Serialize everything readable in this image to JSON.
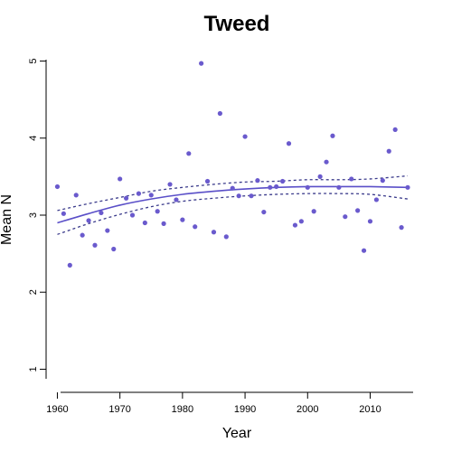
{
  "chart_data": {
    "type": "scatter",
    "title": "Tweed",
    "xlabel": "Year",
    "ylabel": "Mean N",
    "xlim": [
      1958.2,
      2017.3
    ],
    "ylim": [
      0.7,
      5.3
    ],
    "xticks": [
      1960,
      1970,
      1980,
      1990,
      2000,
      2010
    ],
    "yticks": [
      1,
      2,
      3,
      4,
      5
    ],
    "grid": false,
    "legend": "none",
    "series": [
      {
        "kind": "points",
        "color": "#6a5acd",
        "points": [
          [
            1960,
            3.37
          ],
          [
            1961,
            3.02
          ],
          [
            1962,
            2.35
          ],
          [
            1963,
            3.26
          ],
          [
            1964,
            2.74
          ],
          [
            1965,
            2.93
          ],
          [
            1966,
            2.61
          ],
          [
            1967,
            3.03
          ],
          [
            1968,
            2.8
          ],
          [
            1969,
            2.56
          ],
          [
            1970,
            3.47
          ],
          [
            1971,
            3.22
          ],
          [
            1972,
            3.0
          ],
          [
            1973,
            3.28
          ],
          [
            1974,
            2.9
          ],
          [
            1975,
            3.26
          ],
          [
            1976,
            3.05
          ],
          [
            1977,
            2.89
          ],
          [
            1978,
            3.4
          ],
          [
            1979,
            3.2
          ],
          [
            1980,
            2.94
          ],
          [
            1981,
            3.8
          ],
          [
            1982,
            2.85
          ],
          [
            1983,
            4.97
          ],
          [
            1984,
            3.44
          ],
          [
            1985,
            2.78
          ],
          [
            1986,
            4.32
          ],
          [
            1987,
            2.72
          ],
          [
            1988,
            3.35
          ],
          [
            1989,
            3.25
          ],
          [
            1990,
            4.02
          ],
          [
            1991,
            3.25
          ],
          [
            1992,
            3.45
          ],
          [
            1993,
            3.04
          ],
          [
            1994,
            3.36
          ],
          [
            1995,
            3.37
          ],
          [
            1996,
            3.44
          ],
          [
            1997,
            3.93
          ],
          [
            1998,
            2.87
          ],
          [
            1999,
            2.92
          ],
          [
            2000,
            3.36
          ],
          [
            2001,
            3.05
          ],
          [
            2002,
            3.5
          ],
          [
            2003,
            3.69
          ],
          [
            2004,
            4.03
          ],
          [
            2005,
            3.36
          ],
          [
            2006,
            2.98
          ],
          [
            2007,
            3.47
          ],
          [
            2008,
            3.06
          ],
          [
            2009,
            2.54
          ],
          [
            2010,
            2.92
          ],
          [
            2011,
            3.2
          ],
          [
            2012,
            3.45
          ],
          [
            2013,
            3.83
          ],
          [
            2014,
            4.11
          ],
          [
            2015,
            2.84
          ],
          [
            2016,
            3.36
          ]
        ]
      },
      {
        "kind": "fit",
        "style": "solid",
        "color": "#5a4fc8",
        "x": [
          1960,
          1965,
          1970,
          1975,
          1980,
          1985,
          1990,
          1995,
          2000,
          2005,
          2010,
          2016
        ],
        "y": [
          2.9,
          3.02,
          3.13,
          3.21,
          3.27,
          3.31,
          3.34,
          3.36,
          3.37,
          3.37,
          3.37,
          3.36
        ]
      },
      {
        "kind": "ci-upper",
        "style": "dotted",
        "color": "#3c3c8c",
        "x": [
          1960,
          1965,
          1970,
          1975,
          1980,
          1985,
          1990,
          1995,
          2000,
          2005,
          2010,
          2016
        ],
        "y": [
          3.06,
          3.15,
          3.23,
          3.31,
          3.36,
          3.4,
          3.43,
          3.44,
          3.46,
          3.46,
          3.47,
          3.51
        ]
      },
      {
        "kind": "ci-lower",
        "style": "dotted",
        "color": "#3c3c8c",
        "x": [
          1960,
          1965,
          1970,
          1975,
          1980,
          1985,
          1990,
          1995,
          2000,
          2005,
          2010,
          2016
        ],
        "y": [
          2.75,
          2.89,
          3.01,
          3.11,
          3.18,
          3.22,
          3.25,
          3.27,
          3.28,
          3.28,
          3.27,
          3.21
        ]
      }
    ]
  }
}
